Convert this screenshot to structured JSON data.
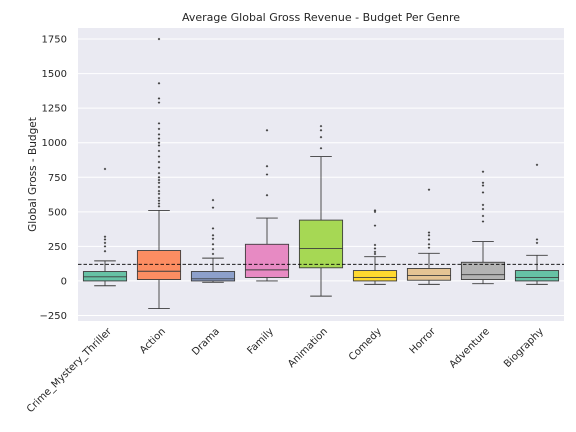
{
  "chart_data": {
    "type": "box",
    "title": "Average Global Gross Revenue - Budget Per Genre",
    "xlabel": "",
    "ylabel": "Global Gross - Budget",
    "ylim": [
      -290,
      1830
    ],
    "yticks": [
      -250,
      0,
      250,
      500,
      750,
      1000,
      1250,
      1500,
      1750
    ],
    "ytick_labels": [
      "−250",
      "0",
      "250",
      "500",
      "750",
      "1000",
      "1250",
      "1500",
      "1750"
    ],
    "grid": true,
    "reference_line": {
      "y": 120,
      "style": "dashed"
    },
    "categories": [
      "Crime_Mystery_Thriller",
      "Action",
      "Drama",
      "Family",
      "Animation",
      "Comedy",
      "Horror",
      "Adventure",
      "Biography"
    ],
    "boxes": [
      {
        "category": "Crime_Mystery_Thriller",
        "whisker_low": -35,
        "q1": 0,
        "median": 30,
        "q3": 68,
        "whisker_high": 145,
        "outliers": [
          215,
          250,
          275,
          300,
          320,
          810
        ]
      },
      {
        "category": "Action",
        "whisker_low": -200,
        "q1": 10,
        "median": 70,
        "q3": 220,
        "whisker_high": 510,
        "outliers": [
          540,
          560,
          580,
          600,
          630,
          650,
          680,
          710,
          730,
          750,
          780,
          820,
          860,
          900,
          940,
          980,
          1000,
          1030,
          1060,
          1100,
          1140,
          1290,
          1320,
          1430,
          1750
        ]
      },
      {
        "category": "Drama",
        "whisker_low": -10,
        "q1": 0,
        "median": 15,
        "q3": 68,
        "whisker_high": 165,
        "outliers": [
          195,
          230,
          265,
          305,
          330,
          380,
          530,
          585
        ]
      },
      {
        "category": "Family",
        "whisker_low": 0,
        "q1": 25,
        "median": 80,
        "q3": 265,
        "whisker_high": 455,
        "outliers": [
          620,
          770,
          830,
          1090
        ]
      },
      {
        "category": "Animation",
        "whisker_low": -110,
        "q1": 95,
        "median": 235,
        "q3": 440,
        "whisker_high": 900,
        "outliers": [
          960,
          1040,
          1090,
          1120
        ]
      },
      {
        "category": "Comedy",
        "whisker_low": -25,
        "q1": 0,
        "median": 25,
        "q3": 75,
        "whisker_high": 175,
        "outliers": [
          195,
          210,
          235,
          260,
          400,
          500,
          510
        ]
      },
      {
        "category": "Horror",
        "whisker_low": -25,
        "q1": 5,
        "median": 40,
        "q3": 90,
        "whisker_high": 200,
        "outliers": [
          240,
          265,
          300,
          330,
          350,
          660
        ]
      },
      {
        "category": "Adventure",
        "whisker_low": -20,
        "q1": 10,
        "median": 45,
        "q3": 135,
        "whisker_high": 285,
        "outliers": [
          430,
          470,
          520,
          550,
          640,
          690,
          710,
          790
        ]
      },
      {
        "category": "Biography",
        "whisker_low": -25,
        "q1": 0,
        "median": 25,
        "q3": 75,
        "whisker_high": 185,
        "outliers": [
          275,
          300,
          840
        ]
      }
    ],
    "colors": {
      "background": "#eaeaf2",
      "grid": "#ffffff",
      "reference_line": "#000000",
      "box_edge": "#3d3d3d",
      "boxes": [
        "#66c2a5",
        "#fc8d62",
        "#8da0cb",
        "#e78ac3",
        "#a6d854",
        "#ffd92f",
        "#e5c494",
        "#b3b3b3",
        "#66c2a5"
      ]
    }
  }
}
